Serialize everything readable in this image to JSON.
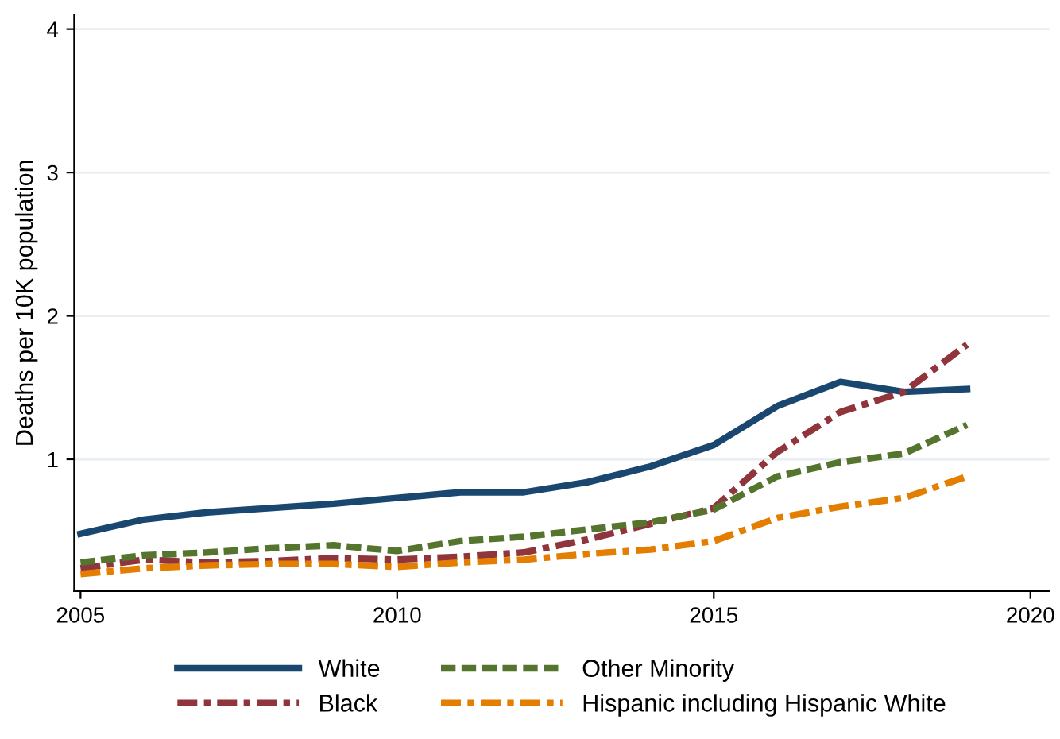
{
  "chart_data": {
    "type": "line",
    "ylabel": "Deaths per 10K population",
    "x": [
      2005,
      2006,
      2007,
      2008,
      2009,
      2010,
      2011,
      2012,
      2013,
      2014,
      2015,
      2016,
      2017,
      2018,
      2019
    ],
    "series": [
      {
        "name": "White",
        "color": "#1a476f",
        "line_style": "solid",
        "values": [
          0.48,
          0.58,
          0.63,
          0.66,
          0.69,
          0.73,
          0.77,
          0.77,
          0.84,
          0.95,
          1.1,
          1.37,
          1.54,
          1.47,
          1.49
        ]
      },
      {
        "name": "Black",
        "color": "#90353b",
        "line_style": "dashdot",
        "values": [
          0.24,
          0.3,
          0.28,
          0.29,
          0.31,
          0.3,
          0.32,
          0.35,
          0.44,
          0.55,
          0.66,
          1.05,
          1.33,
          1.47,
          1.8
        ]
      },
      {
        "name": "Other Minority",
        "color": "#55752f",
        "line_style": "dashed",
        "values": [
          0.28,
          0.33,
          0.35,
          0.38,
          0.4,
          0.36,
          0.43,
          0.46,
          0.51,
          0.56,
          0.65,
          0.88,
          0.98,
          1.04,
          1.24
        ]
      },
      {
        "name": "Hispanic including Hispanic White",
        "color": "#e37e00",
        "line_style": "dashdot",
        "values": [
          0.2,
          0.24,
          0.26,
          0.27,
          0.27,
          0.25,
          0.28,
          0.3,
          0.34,
          0.37,
          0.43,
          0.59,
          0.67,
          0.73,
          0.88
        ]
      }
    ],
    "xlim": [
      2004.9,
      2020.3
    ],
    "ylim": [
      0.08,
      4.1
    ],
    "xticks": [
      2005,
      2010,
      2015,
      2020
    ],
    "yticks": [
      1,
      2,
      3,
      4
    ],
    "grid": "y",
    "legend": "bottom",
    "marker": "none"
  }
}
